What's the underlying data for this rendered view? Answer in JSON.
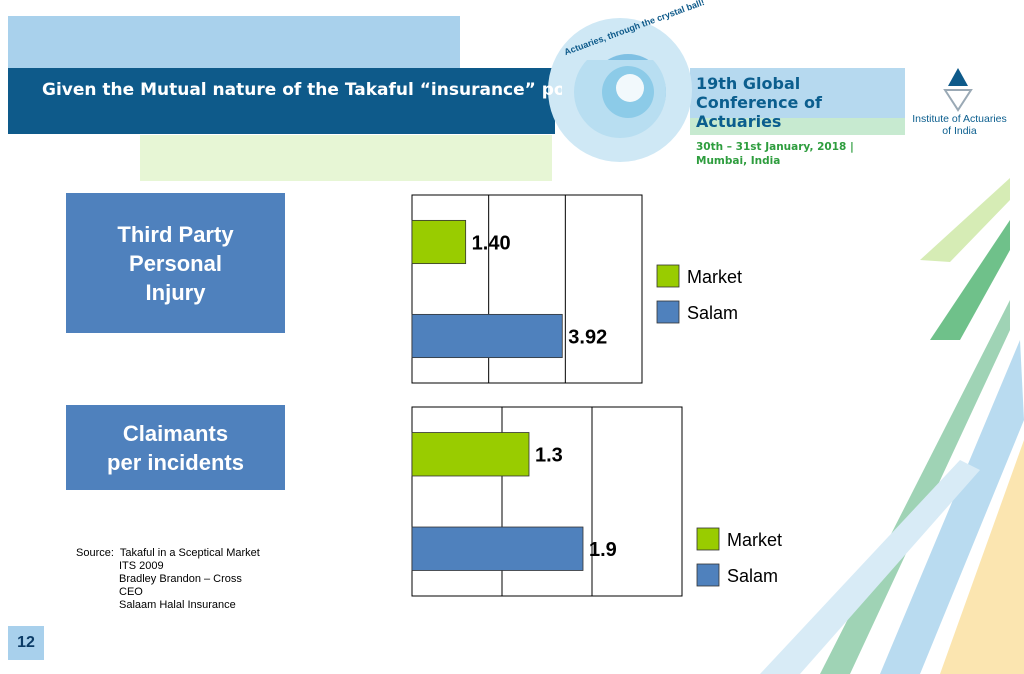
{
  "header": {
    "title": "Given the Mutual nature of the Takaful “insurance” pool, is Takaful claims experience better than insurance?",
    "motto": "Actuaries, through the crystal ball!",
    "conference": "19th Global Conference of Actuaries",
    "date": "30th – 31st January, 2018 | Mumbai, India",
    "institute": "Institute of Actuaries of India"
  },
  "chart_data": [
    {
      "type": "barh",
      "title": "Third Party\nPersonal\nInjury",
      "categories": [
        "Market",
        "Salam"
      ],
      "values": [
        1.4,
        3.92
      ],
      "value_labels": [
        "1.40",
        "3.92"
      ],
      "colors": [
        "#99cc00",
        "#4f81bd"
      ],
      "xlim": [
        0,
        6
      ],
      "xticks": [
        0,
        2,
        4,
        6
      ],
      "grid": true,
      "legend": "right"
    },
    {
      "type": "barh",
      "title": "Claimants\nper incidents",
      "categories": [
        "Market",
        "Salam"
      ],
      "values": [
        1.3,
        1.9
      ],
      "colors": [
        "#99cc00",
        "#4f81bd"
      ],
      "xlim": [
        0,
        3
      ],
      "xticks": [
        0,
        1,
        2,
        3
      ],
      "grid": true,
      "legend": "lower right"
    }
  ],
  "source": {
    "label": "Source:",
    "lines": [
      "Takaful in a Sceptical Market",
      "ITS 2009",
      "Bradley Brandon – Cross",
      "CEO",
      "Salaam Halal Insurance"
    ]
  },
  "page_number": "12"
}
